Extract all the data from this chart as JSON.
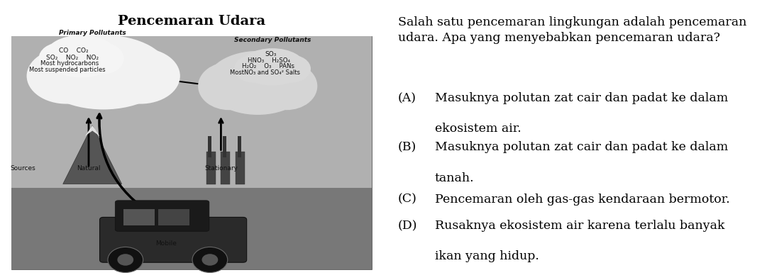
{
  "title": "Pencemaran Udara",
  "title_fontsize": 14,
  "bg_color": "#ffffff",
  "text_color": "#000000",
  "question_text": "Salah satu pencemaran lingkungan adalah pencemaran\nudara. Apa yang menyebabkan pencemaran udara?",
  "option_labels": [
    "(A)",
    "(B)",
    "(C)",
    "(D)"
  ],
  "option_lines": [
    [
      "Masuknya polutan zat cair dan padat ke dalam",
      "ekosistem air."
    ],
    [
      "Masuknya polutan zat cair dan padat ke dalam",
      "tanah."
    ],
    [
      "Pencemaran oleh gas-gas kendaraan bermotor."
    ],
    [
      "Rusaknya ekosistem air karena terlalu banyak",
      "ikan yang hidup."
    ]
  ],
  "fontsize": 12.5,
  "question_fontsize": 12.5,
  "diagram_bg": "#aaaaaa",
  "diagram_sky": "#c8c8c8",
  "diagram_ground": "#888888",
  "cloud_color_left": "#f0f0f0",
  "cloud_color_right": "#d8d8d8"
}
